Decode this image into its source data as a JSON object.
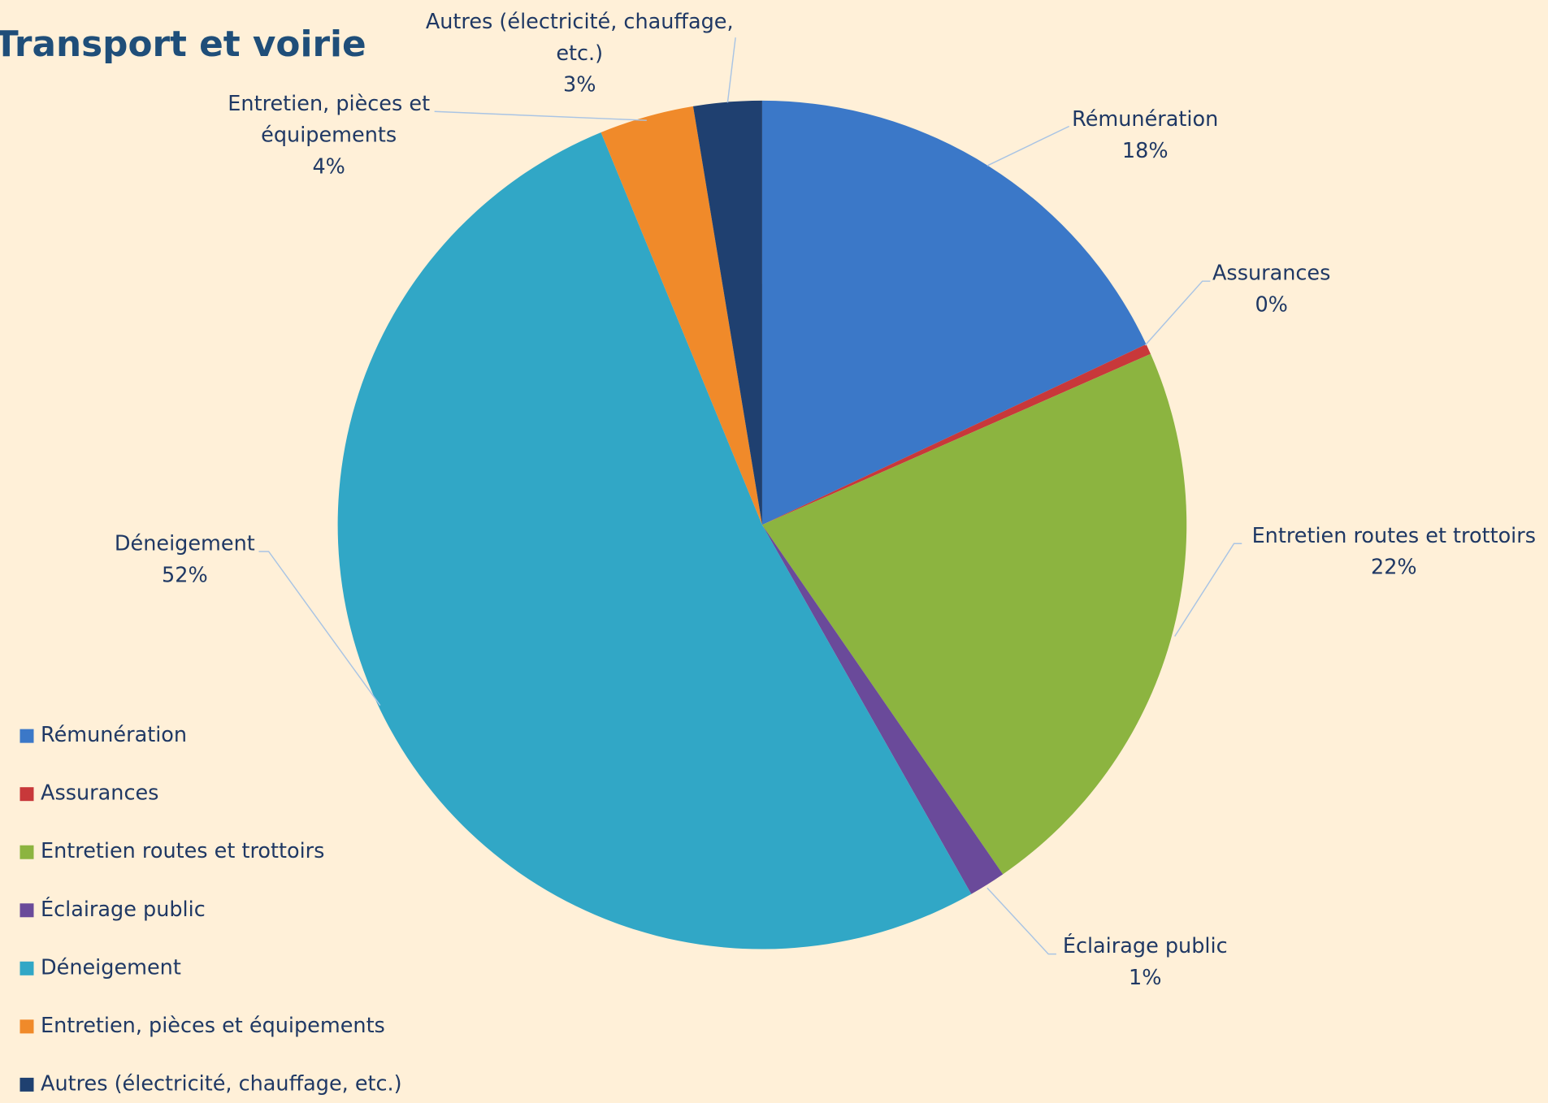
{
  "chart_data": {
    "type": "pie",
    "title": "Transport et voirie",
    "categories": [
      "Rémunération",
      "Assurances",
      "Entretien routes et trottoirs",
      "Éclairage public",
      "Déneigement",
      "Entretien, pièces et équipements",
      "Autres (électricité, chauffage, etc.)"
    ],
    "values": [
      18,
      0.4,
      22,
      1.4,
      52,
      3.6,
      2.6
    ],
    "value_labels": [
      "18%",
      "0%",
      "22%",
      "1%",
      "52%",
      "4%",
      "3%"
    ],
    "colors": [
      "#3b78c8",
      "#c8383a",
      "#8cb440",
      "#6a4a9a",
      "#31a7c6",
      "#f08a2a",
      "#1f4070"
    ],
    "legend": "left"
  }
}
